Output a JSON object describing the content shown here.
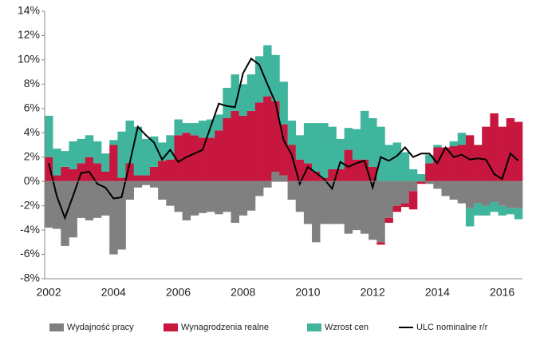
{
  "chart_data": {
    "type": "bar",
    "categories": [
      "2002",
      null,
      null,
      null,
      null,
      null,
      null,
      null,
      "2004",
      null,
      null,
      null,
      null,
      null,
      null,
      null,
      "2006",
      null,
      null,
      null,
      null,
      null,
      null,
      null,
      "2008",
      null,
      null,
      null,
      null,
      null,
      null,
      null,
      "2010",
      null,
      null,
      null,
      null,
      null,
      null,
      null,
      "2012",
      null,
      null,
      null,
      null,
      null,
      null,
      null,
      "2014",
      null,
      null,
      null,
      null,
      null,
      null,
      null,
      "2016",
      null,
      null
    ],
    "series": [
      {
        "name": "Wydajność pracy",
        "color": "#808080",
        "values": [
          -3.8,
          -3.9,
          -5.3,
          -4.6,
          -3.0,
          -3.2,
          -3.0,
          -2.8,
          -6.0,
          -5.6,
          -1.5,
          -0.5,
          -0.3,
          -0.5,
          -1.5,
          -2.0,
          -2.5,
          -3.2,
          -2.8,
          -2.6,
          -2.5,
          -2.7,
          -2.5,
          -3.4,
          -2.8,
          -2.4,
          -1.2,
          -0.5,
          0.8,
          0.5,
          -1.5,
          -2.5,
          -3.5,
          -5.0,
          -3.5,
          -3.5,
          -3.5,
          -4.3,
          -4.0,
          -4.3,
          -4.8,
          -5.0,
          -3.0,
          -2.0,
          -1.8,
          -0.8,
          0,
          -0.2,
          -0.6,
          -1.2,
          -1.5,
          -1.8,
          -2.2,
          -1.8,
          -2.0,
          -1.7,
          -2.0,
          -2.2,
          -2.2
        ]
      },
      {
        "name": "Wynagrodzenia realne",
        "color": "#c8173f",
        "values": [
          2.0,
          0.5,
          1.2,
          1.0,
          1.5,
          2.0,
          1.5,
          0.8,
          3.0,
          0.3,
          1.5,
          0.5,
          0.5,
          1.2,
          1.7,
          1.8,
          3.8,
          4.0,
          3.8,
          3.6,
          3.6,
          4.2,
          5.2,
          5.8,
          5.4,
          5.8,
          6.5,
          7.0,
          5.8,
          4.2,
          3.0,
          1.8,
          1.5,
          0.8,
          0.3,
          1.0,
          1.0,
          2.6,
          1.8,
          1.8,
          1.2,
          -0.2,
          -0.4,
          -0.5,
          -0.3,
          -1.5,
          -0.2,
          1.5,
          2.8,
          2.8,
          2.9,
          3.0,
          3.8,
          3.0,
          4.5,
          5.6,
          4.5,
          5.2,
          4.9
        ]
      },
      {
        "name": "Wzrost cen",
        "color": "#3fb59d",
        "values": [
          3.4,
          2.2,
          1.3,
          2.3,
          2.0,
          1.8,
          1.8,
          1.5,
          0.4,
          3.8,
          3.5,
          4.0,
          3.0,
          2.5,
          1.5,
          2.0,
          1.3,
          0.8,
          1.0,
          1.4,
          1.5,
          1.3,
          2.5,
          3.0,
          2.6,
          3.0,
          3.8,
          4.2,
          3.8,
          3.5,
          2.0,
          2.0,
          3.3,
          4.0,
          4.5,
          3.5,
          2.5,
          1.8,
          2.5,
          4.0,
          4.0,
          4.5,
          3.0,
          3.2,
          2.4,
          1.0,
          0.6,
          0.7,
          0.2,
          0.0,
          0.4,
          1.0,
          -1.5,
          -1.0,
          -0.8,
          -0.8,
          -0.8,
          -0.5,
          -0.9
        ]
      },
      {
        "name": "ULC nominalne r/r",
        "color": "#000000",
        "line": true,
        "values": [
          1.5,
          -1.2,
          -3.0,
          -1.2,
          0.7,
          0.8,
          -0.2,
          -0.5,
          -1.4,
          -1.3,
          1.5,
          4.5,
          3.8,
          3.2,
          1.8,
          2.6,
          1.6,
          2.0,
          2.3,
          2.6,
          4.5,
          6.4,
          6.2,
          6.1,
          8.9,
          10.1,
          9.6,
          8.0,
          6.5,
          3.4,
          2.2,
          -0.2,
          1.2,
          0.7,
          0.2,
          -0.6,
          1.6,
          1.2,
          1.5,
          1.7,
          -0.5,
          2.0,
          1.7,
          2.1,
          2.8,
          2.0,
          2.3,
          2.3,
          1.5,
          2.8,
          2.0,
          2.2,
          1.8,
          1.9,
          1.8,
          0.6,
          0.2,
          2.3,
          1.7
        ]
      }
    ],
    "ylim": [
      -8,
      14
    ],
    "yticks": [
      {
        "value": -8,
        "label": "-8%"
      },
      {
        "value": -6,
        "label": "-6%"
      },
      {
        "value": -4,
        "label": "-4%"
      },
      {
        "value": -2,
        "label": "-2%"
      },
      {
        "value": 0,
        "label": "0%"
      },
      {
        "value": 2,
        "label": "2%"
      },
      {
        "value": 4,
        "label": "4%"
      },
      {
        "value": 6,
        "label": "6%"
      },
      {
        "value": 8,
        "label": "8%"
      },
      {
        "value": 10,
        "label": "10%"
      },
      {
        "value": 12,
        "label": "12%"
      },
      {
        "value": 14,
        "label": "14%"
      }
    ],
    "legend": "bottom"
  }
}
